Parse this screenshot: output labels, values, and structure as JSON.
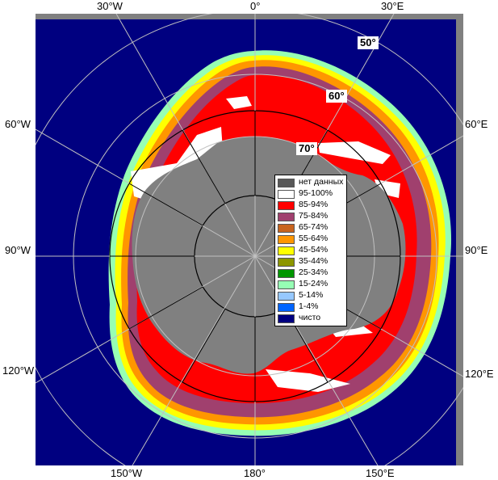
{
  "map": {
    "longitude_labels": {
      "top_left": "30°W",
      "top_center": "0°",
      "top_right": "30°E",
      "left_upper": "60°W",
      "left_mid": "90°W",
      "left_lower": "120°W",
      "right_upper": "60°E",
      "right_mid": "90°E",
      "right_lower": "120°E",
      "bottom_left": "150°W",
      "bottom_center": "180°",
      "bottom_right": "150°E"
    },
    "latitude_labels": {
      "lat50": "50°",
      "lat60": "60°",
      "lat70": "70°"
    },
    "colors": {
      "ocean": "#000080",
      "land": "#808080",
      "frame": "#808080",
      "grid": "#b0b0b0",
      "circle": "#000000"
    }
  },
  "legend": {
    "items": [
      {
        "label": "нет данных",
        "color": "#585858"
      },
      {
        "label": "95-100%",
        "color": "#ffffff"
      },
      {
        "label": "85-94%",
        "color": "#ff0000"
      },
      {
        "label": "75-84%",
        "color": "#a0406e"
      },
      {
        "label": "65-74%",
        "color": "#c8641e"
      },
      {
        "label": "55-64%",
        "color": "#ff9600"
      },
      {
        "label": "45-54%",
        "color": "#ffff00"
      },
      {
        "label": "35-44%",
        "color": "#8c9600"
      },
      {
        "label": "25-34%",
        "color": "#009600"
      },
      {
        "label": "15-24%",
        "color": "#96ffb4"
      },
      {
        "label": "5-14%",
        "color": "#96c8ff"
      },
      {
        "label": "1-4%",
        "color": "#0064ff"
      },
      {
        "label": "чисто",
        "color": "#000080"
      }
    ]
  }
}
